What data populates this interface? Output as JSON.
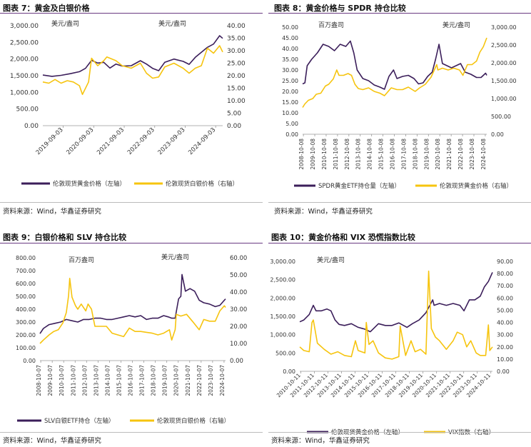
{
  "colors": {
    "purple": "#3b1e5a",
    "gold": "#f6c40e",
    "rule": "#6a3a82"
  },
  "source_text": "资料来源：Wind，华鑫证券研究",
  "panels": [
    {
      "title": "图表 7：黄金及白银价格",
      "source": "资料来源：Wind，华鑫证券研究",
      "chart_data": {
        "type": "line",
        "unit_left": "美元/盎司",
        "unit_right": "美元/盎司",
        "left_ticks": [
          "3,000.00",
          "2,500.00",
          "2,000.00",
          "1,500.00",
          "1,000.00",
          "500.00",
          "0.00"
        ],
        "right_ticks": [
          "40.00",
          "35.00",
          "30.00",
          "25.00",
          "20.00",
          "15.00",
          "10.00",
          "5.00",
          "0.00"
        ],
        "left_range": [
          0,
          3000
        ],
        "right_range": [
          0,
          40
        ],
        "x_range": [
          2019.0,
          2024.9
        ],
        "x_labels": [
          "2019-09-03",
          "2020-09-03",
          "2021-09-03",
          "2022-09-03",
          "2023-09-03",
          "2024-09-03"
        ],
        "x_label_pos": [
          2019.67,
          2020.67,
          2021.67,
          2022.67,
          2023.67,
          2024.67
        ],
        "series": [
          {
            "name": "伦敦现货黄金价格（左轴）",
            "axis": "left",
            "color": "#3b1e5a",
            "x": [
              2019.0,
              2019.3,
              2019.6,
              2019.9,
              2020.2,
              2020.4,
              2020.6,
              2020.8,
              2021.0,
              2021.2,
              2021.4,
              2021.6,
              2021.9,
              2022.2,
              2022.4,
              2022.6,
              2022.8,
              2023.0,
              2023.3,
              2023.6,
              2023.8,
              2024.0,
              2024.2,
              2024.4,
              2024.6,
              2024.8,
              2024.9
            ],
            "y": [
              1520,
              1480,
              1510,
              1560,
              1620,
              1720,
              1960,
              1880,
              1900,
              1730,
              1850,
              1790,
              1800,
              1950,
              1850,
              1720,
              1650,
              1900,
              2000,
              1930,
              1840,
              2050,
              2200,
              2350,
              2450,
              2700,
              2620
            ]
          },
          {
            "name": "伦敦现货白银价格（右轴）",
            "axis": "right",
            "color": "#f6c40e",
            "x": [
              2019.0,
              2019.2,
              2019.4,
              2019.6,
              2019.8,
              2020.0,
              2020.2,
              2020.3,
              2020.5,
              2020.6,
              2020.8,
              2021.0,
              2021.1,
              2021.4,
              2021.6,
              2021.9,
              2022.2,
              2022.4,
              2022.6,
              2022.8,
              2023.0,
              2023.3,
              2023.6,
              2023.8,
              2024.0,
              2024.2,
              2024.4,
              2024.6,
              2024.8,
              2024.9
            ],
            "y": [
              17.5,
              17,
              18.5,
              17,
              18,
              17.5,
              16,
              12.5,
              17.5,
              27,
              24,
              26,
              27.5,
              26,
              24,
              23,
              25,
              21,
              19,
              19.5,
              23.5,
              25,
              23,
              21,
              23,
              24,
              31,
              29,
              32,
              29.5
            ]
          }
        ]
      }
    },
    {
      "title": "图表 8：黄金价格与 SPDR 持仓比较",
      "source": "资料来源：Wind，华鑫证券研究",
      "chart_data": {
        "type": "line",
        "unit_left": "百万盎司",
        "unit_right": "美元/盎司",
        "left_ticks": [
          "50.00",
          "45.00",
          "40.00",
          "35.00",
          "30.00",
          "25.00",
          "20.00",
          "15.00",
          "10.00",
          "5.00",
          "0.00"
        ],
        "right_ticks": [
          "3,000.00",
          "2,500.00",
          "2,000.00",
          "1,500.00",
          "1,000.00",
          "500.00",
          "0.00"
        ],
        "left_range": [
          0,
          50
        ],
        "right_range": [
          0,
          3000
        ],
        "x_range": [
          2008.7,
          2024.9
        ],
        "x_labels": [
          "2008-10-08",
          "2009-10-08",
          "2010-10-08",
          "2011-10-08",
          "2012-10-08",
          "2013-10-08",
          "2014-10-08",
          "2015-10-08",
          "2016-10-08",
          "2017-10-08",
          "2018-10-08",
          "2019-10-08",
          "2020-10-08",
          "2021-10-08",
          "2022-10-08",
          "2023-10-08",
          "2024-10-08"
        ],
        "x_label_pos": [
          2008.77,
          2009.77,
          2010.77,
          2011.77,
          2012.77,
          2013.77,
          2014.77,
          2015.77,
          2016.77,
          2017.77,
          2018.77,
          2019.77,
          2020.77,
          2021.77,
          2022.77,
          2023.77,
          2024.77
        ],
        "series": [
          {
            "name": "SPDR黄金ETF持仓量（左轴）",
            "axis": "left",
            "color": "#3b1e5a",
            "x": [
              2008.7,
              2008.9,
              2009.1,
              2009.5,
              2010.0,
              2010.5,
              2011.0,
              2011.5,
              2012.0,
              2012.5,
              2012.9,
              2013.2,
              2013.5,
              2014.0,
              2014.5,
              2015.0,
              2015.5,
              2015.9,
              2016.3,
              2016.7,
              2017.0,
              2017.5,
              2018.0,
              2018.5,
              2018.9,
              2019.3,
              2019.7,
              2020.1,
              2020.4,
              2020.7,
              2021.0,
              2021.4,
              2021.8,
              2022.2,
              2022.6,
              2023.0,
              2023.5,
              2024.0,
              2024.4,
              2024.8,
              2024.9
            ],
            "y": [
              23.5,
              24,
              32,
              35,
              38,
              42,
              41,
              39,
              42,
              41,
              43.5,
              38,
              30,
              26,
              25,
              23,
              22,
              21,
              27,
              30,
              26,
              27,
              27.5,
              26,
              23.5,
              24,
              27,
              29,
              35,
              42,
              33,
              32,
              31,
              32,
              33,
              29,
              28,
              26.5,
              26.5,
              28.5,
              27.5
            ]
          },
          {
            "name": "伦敦现货黄金价格（右轴）",
            "axis": "right",
            "color": "#f6c40e",
            "x": [
              2008.7,
              2008.9,
              2009.2,
              2009.6,
              2009.9,
              2010.3,
              2010.7,
              2011.0,
              2011.4,
              2011.7,
              2011.9,
              2012.3,
              2012.7,
              2013.0,
              2013.3,
              2013.6,
              2014.0,
              2014.5,
              2015.0,
              2015.5,
              2015.9,
              2016.5,
              2017.0,
              2017.5,
              2018.0,
              2018.6,
              2019.0,
              2019.5,
              2020.0,
              2020.5,
              2020.6,
              2021.0,
              2021.5,
              2022.0,
              2022.5,
              2022.8,
              2023.2,
              2023.6,
              2024.0,
              2024.3,
              2024.6,
              2024.9
            ],
            "y": [
              750,
              850,
              950,
              1000,
              1120,
              1150,
              1350,
              1400,
              1550,
              1800,
              1650,
              1650,
              1700,
              1650,
              1400,
              1280,
              1250,
              1300,
              1200,
              1150,
              1080,
              1300,
              1250,
              1250,
              1320,
              1200,
              1300,
              1400,
              1600,
              1950,
              1800,
              1850,
              1800,
              1850,
              1800,
              1650,
              1950,
              1950,
              2050,
              2300,
              2450,
              2700
            ]
          }
        ]
      }
    },
    {
      "title": "图表 9：白银价格和 SLV 持仓比较",
      "source": "资料来源：Wind，华鑫证券研究",
      "chart_data": {
        "type": "line",
        "unit_left": "百万盎司",
        "unit_right": "美元/盎司",
        "left_ticks": [
          "800.00",
          "700.00",
          "600.00",
          "500.00",
          "400.00",
          "300.00",
          "200.00",
          "100.00",
          "0.00"
        ],
        "right_ticks": [
          "60.00",
          "50.00",
          "40.00",
          "30.00",
          "20.00",
          "10.00",
          "0.00"
        ],
        "left_range": [
          0,
          800
        ],
        "right_range": [
          0,
          60
        ],
        "x_range": [
          2008.7,
          2024.9
        ],
        "x_labels": [
          "2008-10-07",
          "2009-10-07",
          "2010-10-07",
          "2011-10-07",
          "2012-10-07",
          "2013-10-07",
          "2014-10-07",
          "2015-10-07",
          "2016-10-07",
          "2017-10-07",
          "2018-10-07",
          "2019-10-07",
          "2020-10-07",
          "2021-10-07",
          "2022-10-07",
          "2023-10-07",
          "2024-10-07"
        ],
        "x_label_pos": [
          2008.77,
          2009.77,
          2010.77,
          2011.77,
          2012.77,
          2013.77,
          2014.77,
          2015.77,
          2016.77,
          2017.77,
          2018.77,
          2019.77,
          2020.77,
          2021.77,
          2022.77,
          2023.77,
          2024.77
        ],
        "series": [
          {
            "name": "SLV白银ETF持仓（左轴）",
            "axis": "left",
            "color": "#3b1e5a",
            "x": [
              2008.7,
              2009.0,
              2009.5,
              2010.0,
              2010.5,
              2011.0,
              2011.5,
              2012.0,
              2012.5,
              2013.0,
              2013.5,
              2014.0,
              2014.5,
              2015.0,
              2015.5,
              2016.0,
              2016.5,
              2017.0,
              2017.5,
              2018.0,
              2018.5,
              2019.0,
              2019.5,
              2019.9,
              2020.2,
              2020.5,
              2020.8,
              2021.0,
              2021.1,
              2021.4,
              2021.8,
              2022.2,
              2022.6,
              2023.0,
              2023.5,
              2024.0,
              2024.4,
              2024.8,
              2024.9
            ],
            "y": [
              210,
              250,
              280,
              290,
              300,
              320,
              310,
              300,
              320,
              320,
              330,
              330,
              320,
              320,
              330,
              340,
              350,
              340,
              350,
              320,
              330,
              330,
              350,
              340,
              330,
              330,
              480,
              500,
              670,
              540,
              560,
              540,
              470,
              450,
              440,
              420,
              430,
              470,
              480
            ]
          },
          {
            "name": "伦敦现货白银价格（右轴）",
            "axis": "right",
            "color": "#f6c40e",
            "x": [
              2008.7,
              2009.0,
              2009.5,
              2009.9,
              2010.3,
              2010.7,
              2011.0,
              2011.2,
              2011.3,
              2011.5,
              2011.8,
              2012.0,
              2012.3,
              2012.7,
              2012.9,
              2013.2,
              2013.5,
              2014.0,
              2014.5,
              2015.0,
              2015.5,
              2016.0,
              2016.5,
              2017.0,
              2017.5,
              2018.0,
              2018.5,
              2019.0,
              2019.5,
              2020.0,
              2020.2,
              2020.5,
              2020.6,
              2021.0,
              2021.5,
              2022.0,
              2022.6,
              2023.0,
              2023.5,
              2024.0,
              2024.4,
              2024.8,
              2024.9
            ],
            "y": [
              10,
              12,
              15,
              17,
              18,
              22,
              28,
              38,
              48,
              37,
              32,
              30,
              33,
              29,
              33,
              30,
              20,
              20,
              20,
              16,
              15,
              14,
              19,
              17,
              17,
              16.5,
              16,
              15,
              16,
              18,
              12,
              18,
              27,
              26,
              27,
              23,
              18,
              24,
              23,
              23,
              29,
              32,
              31
            ]
          }
        ]
      }
    },
    {
      "title": "图表 10：黄金价格和 VIX 恐慌指数比较",
      "source": "资料来源：Wind，华鑫证券研究",
      "chart_data": {
        "type": "line",
        "unit_left": "美元/盎司",
        "unit_right": "",
        "left_ticks": [
          "3,000.00",
          "2,500.00",
          "2,000.00",
          "1,500.00",
          "1,000.00",
          "500.00",
          "0.00"
        ],
        "right_ticks": [
          "90.00",
          "80.00",
          "70.00",
          "60.00",
          "50.00",
          "40.00",
          "30.00",
          "20.00",
          "10.00",
          "0.00"
        ],
        "left_range": [
          0,
          3000
        ],
        "right_range": [
          0,
          90
        ],
        "x_range": [
          2010.7,
          2024.9
        ],
        "x_labels": [
          "2010-10-11",
          "2011-10-11",
          "2012-10-11",
          "2013-10-11",
          "2014-10-11",
          "2015-10-11",
          "2016-10-11",
          "2017-10-11",
          "2018-10-11",
          "2019-10-11",
          "2020-10-11",
          "2021-10-11",
          "2022-10-11",
          "2023-10-11",
          "2024-10-11"
        ],
        "x_label_pos": [
          2010.78,
          2011.78,
          2012.78,
          2013.78,
          2014.78,
          2015.78,
          2016.78,
          2017.78,
          2018.78,
          2019.78,
          2020.78,
          2021.78,
          2022.78,
          2023.78,
          2024.78
        ],
        "series": [
          {
            "name": "伦敦现货黄金价格（左轴）",
            "axis": "left",
            "color": "#3b1e5a",
            "x": [
              2010.7,
              2011.0,
              2011.4,
              2011.7,
              2011.9,
              2012.3,
              2012.7,
              2013.0,
              2013.3,
              2013.6,
              2014.0,
              2014.5,
              2015.0,
              2015.5,
              2015.9,
              2016.5,
              2017.0,
              2017.5,
              2018.0,
              2018.6,
              2019.0,
              2019.5,
              2020.0,
              2020.5,
              2020.6,
              2021.0,
              2021.5,
              2022.0,
              2022.5,
              2022.8,
              2023.2,
              2023.6,
              2024.0,
              2024.3,
              2024.6,
              2024.9
            ],
            "y": [
              1350,
              1400,
              1550,
              1800,
              1650,
              1650,
              1700,
              1650,
              1400,
              1280,
              1250,
              1300,
              1200,
              1150,
              1080,
              1300,
              1250,
              1250,
              1320,
              1200,
              1300,
              1400,
              1600,
              1950,
              1800,
              1850,
              1800,
              1850,
              1800,
              1650,
              1950,
              1950,
              2050,
              2300,
              2450,
              2700
            ]
          },
          {
            "name": "VIX指数（右轴）",
            "axis": "right",
            "color": "#f6c40e",
            "x": [
              2010.7,
              2011.0,
              2011.4,
              2011.6,
              2011.7,
              2012.0,
              2012.5,
              2013.0,
              2013.5,
              2014.0,
              2014.5,
              2014.8,
              2015.0,
              2015.5,
              2015.6,
              2015.8,
              2016.1,
              2016.5,
              2017.0,
              2017.5,
              2018.0,
              2018.1,
              2018.5,
              2018.9,
              2019.2,
              2019.6,
              2020.0,
              2020.2,
              2020.4,
              2020.7,
              2021.0,
              2021.5,
              2022.0,
              2022.3,
              2022.7,
              2023.0,
              2023.3,
              2023.7,
              2024.0,
              2024.4,
              2024.6,
              2024.7,
              2024.9
            ],
            "y": [
              20,
              17,
              16,
              40,
              42,
              23,
              18,
              14,
              16,
              13,
              12,
              25,
              17,
              15,
              40,
              22,
              25,
              15,
              11,
              10,
              12,
              37,
              13,
              25,
              16,
              18,
              14,
              82,
              35,
              28,
              25,
              18,
              25,
              32,
              30,
              20,
              25,
              15,
              13,
              13,
              38,
              17,
              20
            ]
          }
        ]
      }
    }
  ]
}
